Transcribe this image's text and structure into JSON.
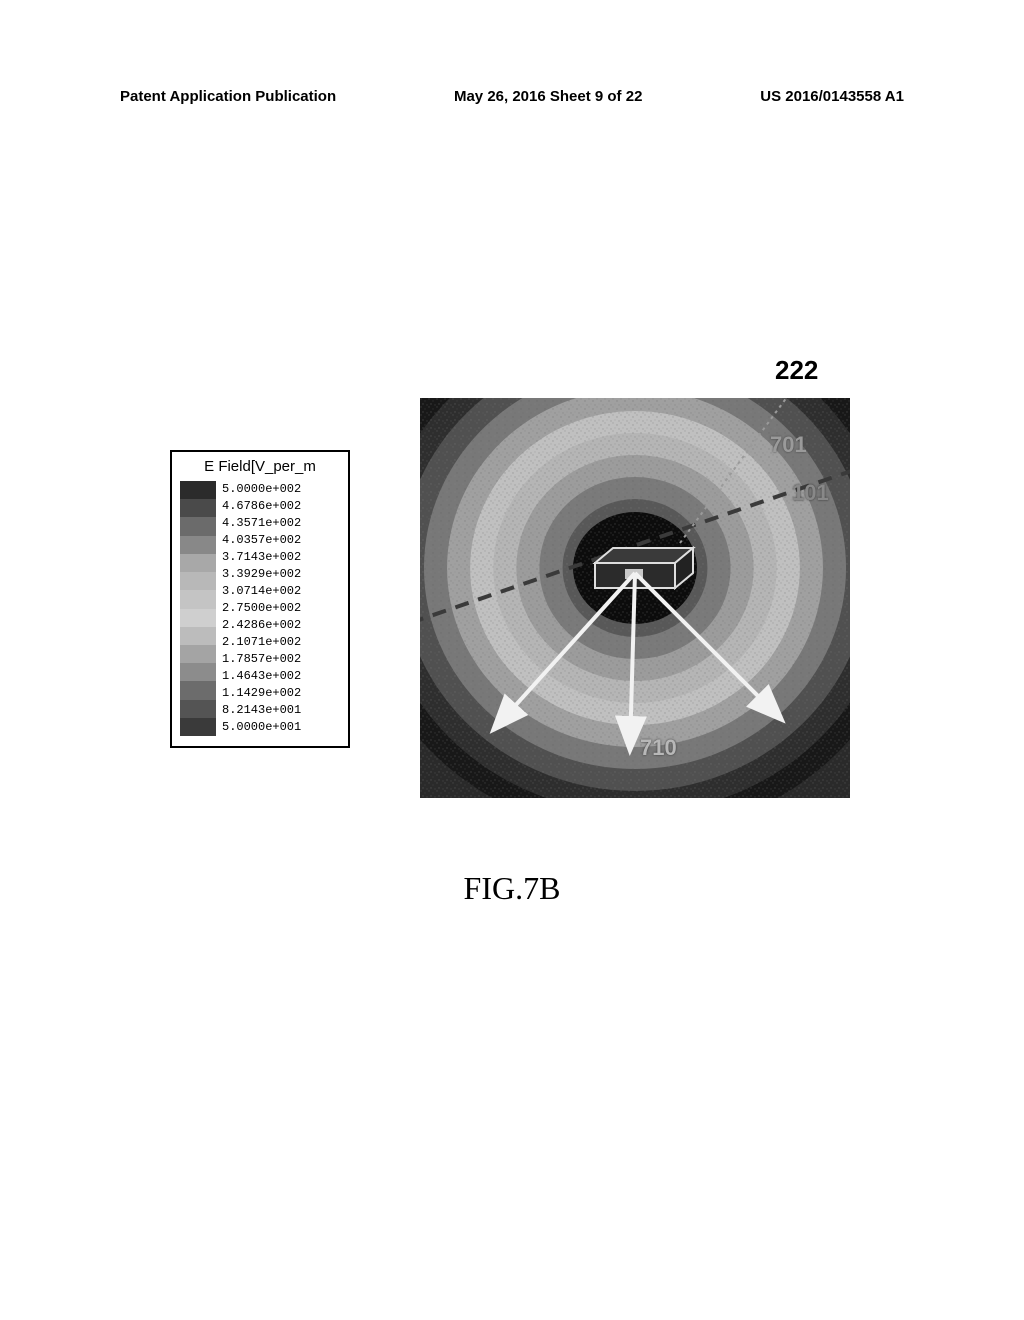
{
  "header": {
    "left": "Patent Application Publication",
    "center": "May 26, 2016  Sheet 9 of 22",
    "right": "US 2016/0143558 A1"
  },
  "legend": {
    "title": "E Field[V_per_m",
    "values": [
      "5.0000e+002",
      "4.6786e+002",
      "4.3571e+002",
      "4.0357e+002",
      "3.7143e+002",
      "3.3929e+002",
      "3.0714e+002",
      "2.7500e+002",
      "2.4286e+002",
      "2.1071e+002",
      "1.7857e+002",
      "1.4643e+002",
      "1.1429e+002",
      "8.2143e+001",
      "5.0000e+001"
    ],
    "swatch_colors": [
      "#2b2b2b",
      "#4a4a4a",
      "#6b6b6b",
      "#888888",
      "#a8a8a8",
      "#b8b8b8",
      "#c4c4c4",
      "#cfcfcf",
      "#bcbcbc",
      "#a4a4a4",
      "#8c8c8c",
      "#6c6c6c",
      "#545454",
      "#3a3a3a"
    ]
  },
  "callouts": {
    "c222": "222",
    "c701": "701",
    "c101": "101",
    "c710": "710"
  },
  "sim": {
    "ring_colors": [
      "#1a1a1a",
      "#353535",
      "#585858",
      "#7a7a7a",
      "#9c9c9c",
      "#b5b5b5",
      "#c0c0c0",
      "#a0a0a0",
      "#787878",
      "#505050",
      "#2e2e2e",
      "#181818"
    ],
    "diag_upper_color": "#e8e8e8",
    "diag_lower_color": "#2a2a2a",
    "dash_color": "#3a3a3a",
    "arrow_color": "#f2f2f2",
    "box_stroke": "#dedede",
    "box_fill": "#2b2b2b",
    "leader_color": "#9a9a9a"
  },
  "caption": "FIG.7B"
}
